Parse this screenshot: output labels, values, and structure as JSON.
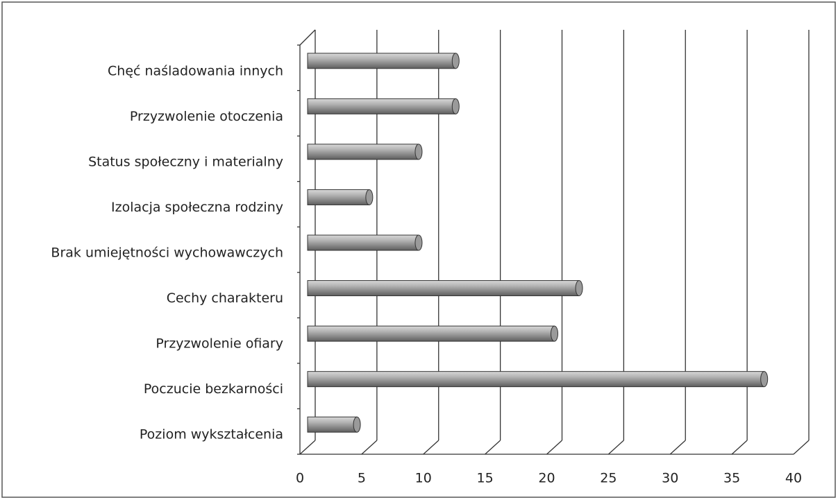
{
  "chart_data": {
    "type": "bar",
    "orientation": "horizontal",
    "categories": [
      "Poziom wykształcenia",
      "Poczucie bezkarności",
      "Przyzwolenie ofiary",
      "Cechy charakteru",
      "Brak umiejętności wychowawczych",
      "Izolacja społeczna rodziny",
      "Status społeczny i materialny",
      "Przyzwolenie otoczenia",
      "Chęć naśladowania innych"
    ],
    "values": [
      4,
      37,
      20,
      22,
      9,
      5,
      9,
      12,
      12
    ],
    "color": "#9a9a9a",
    "xlim": [
      0,
      40
    ],
    "xticks": [
      0,
      5,
      10,
      15,
      20,
      25,
      30,
      35,
      40
    ],
    "grid": true
  }
}
